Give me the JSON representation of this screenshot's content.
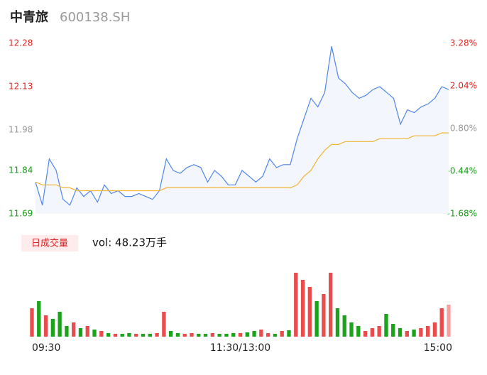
{
  "chart_data": [
    {
      "type": "line",
      "title": "中青旅",
      "subtitle": "600138.SH",
      "ylim": [
        11.69,
        12.28
      ],
      "yticks": [
        11.69,
        11.84,
        11.98,
        12.13,
        12.28
      ],
      "ytick_colors": [
        "#1a9c1a",
        "#1a9c1a",
        "#999999",
        "#e02424",
        "#e02424"
      ],
      "y2lim": [
        -1.68,
        3.28
      ],
      "y2ticks": [
        {
          "value": -1.68,
          "label": "-1.68%"
        },
        {
          "value": -0.44,
          "label": "-0.44%"
        },
        {
          "value": 0.8,
          "label": "0.80%"
        },
        {
          "value": 2.04,
          "label": "2.04%"
        },
        {
          "value": 3.28,
          "label": "3.28%"
        }
      ],
      "y2tick_colors": [
        "#1a9c1a",
        "#1a9c1a",
        "#999999",
        "#e02424",
        "#e02424"
      ],
      "series": [
        {
          "name": "price",
          "color": "#4f86e8",
          "area": "#f3f6fd",
          "values": [
            11.8,
            11.72,
            11.88,
            11.84,
            11.74,
            11.72,
            11.78,
            11.75,
            11.77,
            11.73,
            11.79,
            11.76,
            11.77,
            11.75,
            11.75,
            11.76,
            11.75,
            11.74,
            11.77,
            11.88,
            11.84,
            11.83,
            11.85,
            11.86,
            11.85,
            11.8,
            11.84,
            11.82,
            11.79,
            11.79,
            11.84,
            11.82,
            11.8,
            11.82,
            11.88,
            11.85,
            11.86,
            11.86,
            11.95,
            12.02,
            12.09,
            12.06,
            12.11,
            12.27,
            12.16,
            12.14,
            12.11,
            12.09,
            12.1,
            12.12,
            12.13,
            12.11,
            12.09,
            12.0,
            12.05,
            12.04,
            12.06,
            12.07,
            12.09,
            12.13,
            12.12
          ]
        },
        {
          "name": "avg",
          "color": "#f2b431",
          "values": [
            11.8,
            11.79,
            11.79,
            11.79,
            11.78,
            11.78,
            11.77,
            11.77,
            11.77,
            11.77,
            11.77,
            11.77,
            11.77,
            11.77,
            11.77,
            11.77,
            11.77,
            11.77,
            11.77,
            11.78,
            11.78,
            11.78,
            11.78,
            11.78,
            11.78,
            11.78,
            11.78,
            11.78,
            11.78,
            11.78,
            11.78,
            11.78,
            11.78,
            11.78,
            11.78,
            11.78,
            11.78,
            11.78,
            11.79,
            11.82,
            11.84,
            11.88,
            11.91,
            11.93,
            11.93,
            11.94,
            11.94,
            11.94,
            11.94,
            11.94,
            11.95,
            11.95,
            11.95,
            11.95,
            11.95,
            11.96,
            11.96,
            11.96,
            11.96,
            11.97,
            11.97
          ]
        }
      ]
    },
    {
      "type": "bar",
      "title": "日成交量",
      "subtitle": "vol: 48.23万手",
      "categories": [
        "09:30",
        null,
        null,
        null,
        null,
        null,
        null,
        null,
        null,
        null,
        null,
        null,
        null,
        null,
        null,
        null,
        null,
        null,
        null,
        null,
        null,
        null,
        null,
        null,
        null,
        null,
        null,
        null,
        null,
        null,
        "11:30/13:00",
        null,
        null,
        null,
        null,
        null,
        null,
        null,
        null,
        null,
        null,
        null,
        null,
        null,
        null,
        null,
        null,
        null,
        null,
        null,
        null,
        null,
        null,
        null,
        null,
        null,
        null,
        null,
        null,
        null,
        "15:00"
      ],
      "ylim": [
        0,
        10000
      ],
      "values": [
        4000,
        5000,
        3000,
        2500,
        3500,
        1500,
        2000,
        1200,
        1500,
        1000,
        800,
        500,
        400,
        400,
        500,
        400,
        400,
        400,
        500,
        3500,
        800,
        500,
        400,
        500,
        400,
        400,
        500,
        400,
        400,
        500,
        500,
        600,
        800,
        1000,
        500,
        400,
        800,
        900,
        9000,
        8000,
        7000,
        5000,
        6000,
        9000,
        4000,
        3000,
        2000,
        1500,
        800,
        1200,
        1500,
        3200,
        1800,
        1200,
        800,
        1000,
        1200,
        1500,
        2000,
        4000,
        4500
      ],
      "colors": [
        "#e84c4c",
        "#1ba31b",
        "#e84c4c",
        "#1ba31b",
        "#1ba31b",
        "#1ba31b",
        "#e84c4c",
        "#1ba31b",
        "#e84c4c",
        "#1ba31b",
        "#e84c4c",
        "#1ba31b",
        "#e84c4c",
        "#1ba31b",
        "#1ba31b",
        "#e84c4c",
        "#1ba31b",
        "#1ba31b",
        "#e84c4c",
        "#e84c4c",
        "#1ba31b",
        "#1ba31b",
        "#e84c4c",
        "#e84c4c",
        "#1ba31b",
        "#1ba31b",
        "#e84c4c",
        "#1ba31b",
        "#1ba31b",
        "#1ba31b",
        "#e84c4c",
        "#1ba31b",
        "#1ba31b",
        "#e84c4c",
        "#e84c4c",
        "#1ba31b",
        "#e84c4c",
        "#1ba31b",
        "#e84c4c",
        "#e84c4c",
        "#e84c4c",
        "#1ba31b",
        "#e84c4c",
        "#e84c4c",
        "#1ba31b",
        "#1ba31b",
        "#1ba31b",
        "#1ba31b",
        "#e84c4c",
        "#e84c4c",
        "#e84c4c",
        "#1ba31b",
        "#1ba31b",
        "#1ba31b",
        "#e84c4c",
        "#1ba31b",
        "#e84c4c",
        "#e84c4c",
        "#e84c4c",
        "#e84c4c",
        "#f5a0a0"
      ]
    }
  ]
}
